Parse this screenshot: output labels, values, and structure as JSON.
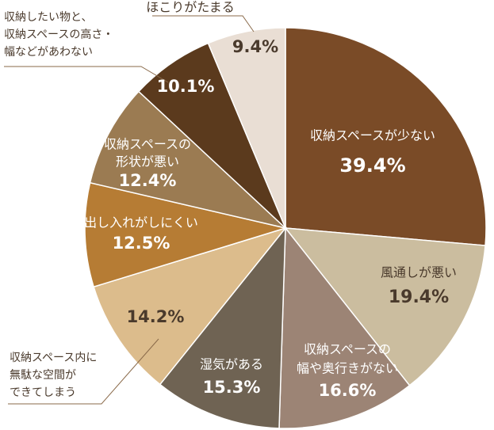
{
  "chart_data": {
    "type": "pie",
    "categories": [
      [
        "収納スペースが少ない"
      ],
      [
        "風通しが悪い"
      ],
      [
        "収納スペースの",
        "幅や奥行きがない"
      ],
      [
        "湿気がある"
      ],
      [
        "収納スペース内に",
        "無駄な空間が",
        "できてしまう"
      ],
      [
        "出し入れがしにくい"
      ],
      [
        "収納スペースの",
        "形状が悪い"
      ],
      [
        "収納したい物と、",
        "収納スペースの高さ・",
        "幅などがあわない"
      ],
      [
        "ほこりがたまる"
      ]
    ],
    "values": [
      39.4,
      19.4,
      16.6,
      15.3,
      14.2,
      12.5,
      12.4,
      10.1,
      9.4
    ],
    "value_labels": [
      "39.4%",
      "19.4%",
      "16.6%",
      "15.3%",
      "14.2%",
      "12.5%",
      "12.4%",
      "10.1%",
      "9.4%"
    ],
    "colors": [
      "#7a4b27",
      "#cbbd9f",
      "#9c8475",
      "#6f6353",
      "#dcbc8c",
      "#b67c34",
      "#9b7b52",
      "#5b3a1d",
      "#e9ded4"
    ]
  }
}
